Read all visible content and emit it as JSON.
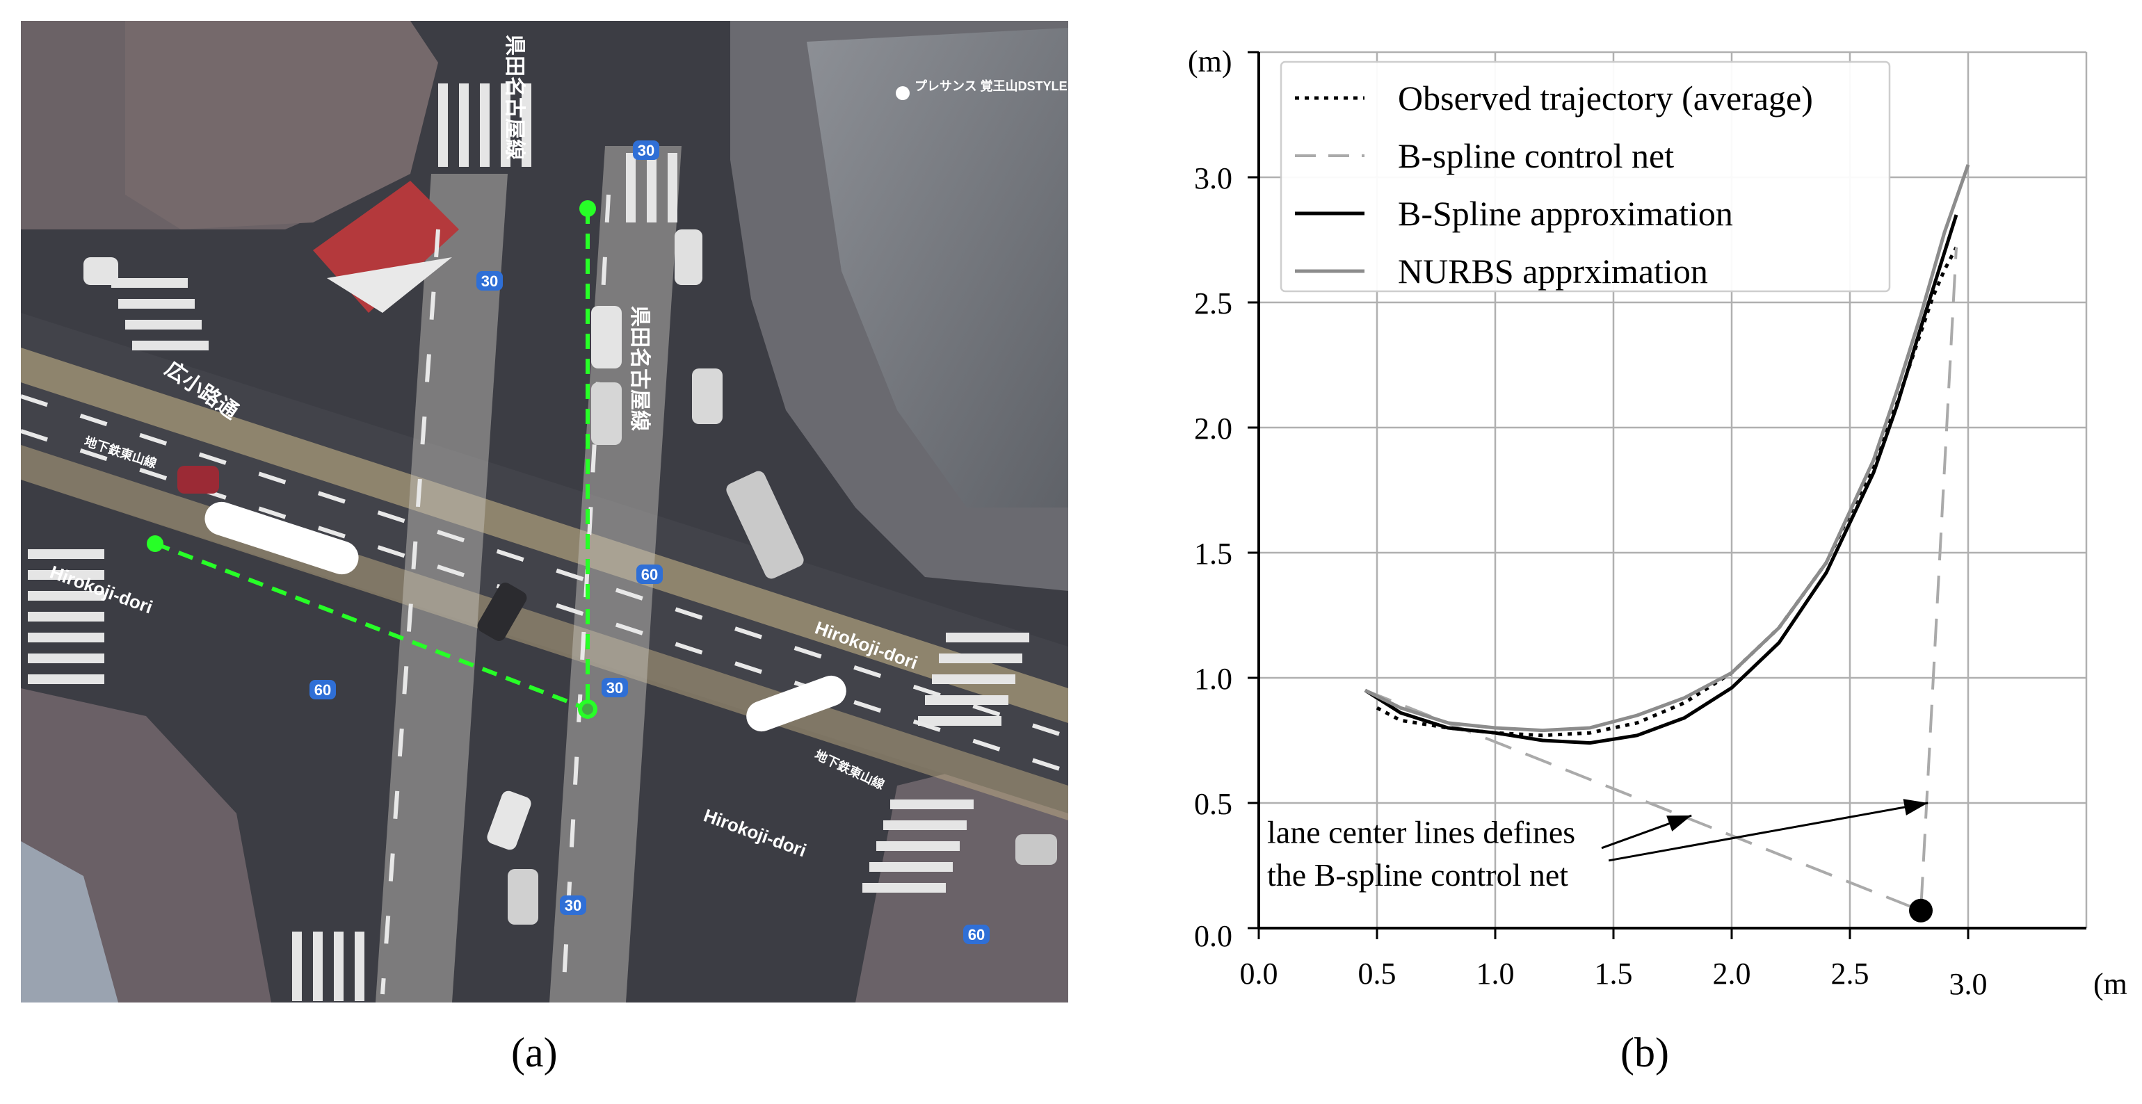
{
  "panels": {
    "a_label": "(a)",
    "b_label": "(b)"
  },
  "map": {
    "road_labels": {
      "hirokoji_left": "Hirokoji-dori",
      "hirokoji_right": "Hirokoji-dori",
      "hirokoji_lower": "Hirokoji-dori",
      "hirokoji_jp": "広小路通",
      "tsushima_jp_top": "県田名古屋線",
      "tsushima_jp_mid": "県田名古屋線",
      "subway_left": "地下鉄東山線",
      "subway_right": "地下鉄東山線",
      "poi": "プレサンス 覚王山DSTYLE"
    },
    "shields": [
      "30",
      "30",
      "60",
      "60",
      "30",
      "30",
      "60"
    ]
  },
  "chart_data": {
    "type": "line",
    "xlim": [
      0.0,
      3.5
    ],
    "ylim": [
      0.0,
      3.5
    ],
    "xticks": [
      "0.0",
      "0.5",
      "1.0",
      "1.5",
      "2.0",
      "2.5",
      "3.0"
    ],
    "yticks": [
      "0.0",
      "0.5",
      "1.0",
      "1.5",
      "2.0",
      "2.5",
      "3.0"
    ],
    "xlabel": "(m)",
    "ylabel": "(m)",
    "grid": true,
    "legend_position": "top-left",
    "series": [
      {
        "name": "Observed trajectory (average)",
        "style": "dotted",
        "color": "#000000",
        "x": [
          0.5,
          0.6,
          0.8,
          1.0,
          1.2,
          1.4,
          1.6,
          1.8,
          2.0,
          2.2,
          2.4,
          2.6,
          2.7,
          2.8,
          2.85,
          2.9,
          2.95
        ],
        "y": [
          0.88,
          0.83,
          0.8,
          0.78,
          0.77,
          0.78,
          0.82,
          0.9,
          1.02,
          1.2,
          1.46,
          1.85,
          2.1,
          2.38,
          2.52,
          2.63,
          2.72
        ]
      },
      {
        "name": "B-spline control net",
        "style": "dashed",
        "color": "#aaaaaa",
        "x": [
          0.45,
          2.8,
          2.95
        ],
        "y": [
          0.95,
          0.07,
          2.72
        ]
      },
      {
        "name": "B-Spline approximation",
        "style": "solid",
        "color": "#000000",
        "x": [
          0.45,
          0.6,
          0.8,
          1.0,
          1.2,
          1.4,
          1.6,
          1.8,
          2.0,
          2.2,
          2.4,
          2.6,
          2.7,
          2.8,
          2.9,
          2.95
        ],
        "y": [
          0.95,
          0.86,
          0.8,
          0.78,
          0.75,
          0.74,
          0.77,
          0.84,
          0.96,
          1.14,
          1.42,
          1.82,
          2.09,
          2.4,
          2.7,
          2.85
        ]
      },
      {
        "name": "NURBS apprximation",
        "style": "solid",
        "color": "#8c8c8c",
        "x": [
          0.45,
          0.6,
          0.8,
          1.0,
          1.2,
          1.4,
          1.6,
          1.8,
          2.0,
          2.2,
          2.4,
          2.6,
          2.7,
          2.8,
          2.9,
          3.0
        ],
        "y": [
          0.95,
          0.88,
          0.82,
          0.8,
          0.79,
          0.8,
          0.85,
          0.92,
          1.02,
          1.2,
          1.46,
          1.87,
          2.15,
          2.45,
          2.78,
          3.05
        ]
      }
    ],
    "marker": {
      "x": 2.8,
      "y": 0.07
    },
    "annotation": {
      "line1": "lane center lines defines",
      "line2": "the B-spline control net",
      "arrow_targets": [
        {
          "x": 1.83,
          "y": 0.45
        },
        {
          "x": 2.83,
          "y": 0.5
        }
      ]
    }
  }
}
